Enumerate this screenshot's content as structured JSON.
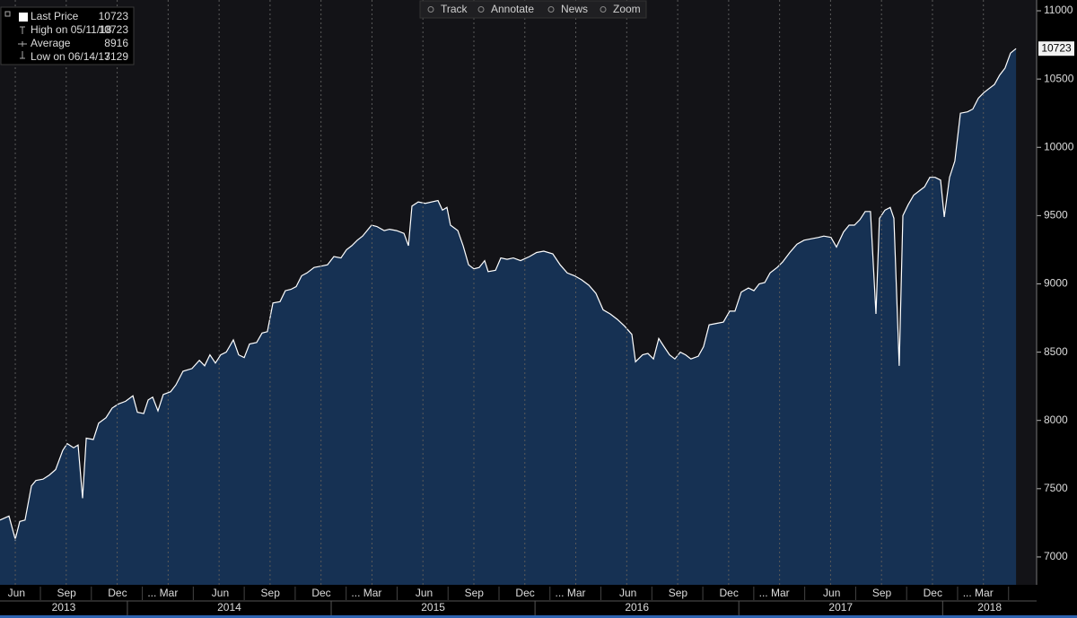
{
  "toolbar": [
    "Track",
    "Annotate",
    "News",
    "Zoom"
  ],
  "chart_data": {
    "type": "area",
    "legend": [
      {
        "label": "Last Price",
        "value": 10723
      },
      {
        "label": "High on 05/11/18",
        "value": 10723
      },
      {
        "label": "Average",
        "value": 8916
      },
      {
        "label": "Low on 06/14/13",
        "value": 7129
      }
    ],
    "x": [
      2013.375,
      2013.419,
      2013.45,
      2013.472,
      2013.498,
      2013.529,
      2013.551,
      2013.586,
      2013.617,
      2013.648,
      2013.683,
      2013.705,
      2013.736,
      2013.758,
      2013.78,
      2013.798,
      2013.833,
      2013.859,
      2013.895,
      2013.925,
      2013.956,
      2013.991,
      2014.027,
      2014.049,
      2014.08,
      2014.102,
      2014.124,
      2014.15,
      2014.176,
      2014.212,
      2014.238,
      2014.273,
      2014.317,
      2014.353,
      2014.379,
      2014.405,
      2014.432,
      2014.458,
      2014.485,
      2014.52,
      2014.546,
      2014.573,
      2014.599,
      2014.634,
      2014.661,
      2014.687,
      2014.714,
      2014.749,
      2014.775,
      2014.802,
      2014.828,
      2014.855,
      2014.881,
      2014.916,
      2014.951,
      2014.982,
      2015.013,
      2015.048,
      2015.075,
      2015.101,
      2015.128,
      2015.154,
      2015.198,
      2015.224,
      2015.26,
      2015.286,
      2015.321,
      2015.357,
      2015.379,
      2015.396,
      2015.427,
      2015.462,
      2015.524,
      2015.546,
      2015.568,
      2015.585,
      2015.621,
      2015.647,
      2015.674,
      2015.7,
      2015.726,
      2015.753,
      2015.77,
      2015.806,
      2015.832,
      2015.863,
      2015.894,
      2015.929,
      2015.973,
      2016.008,
      2016.043,
      2016.087,
      2016.123,
      2016.158,
      2016.193,
      2016.228,
      2016.264,
      2016.299,
      2016.334,
      2016.369,
      2016.404,
      2016.44,
      2016.475,
      2016.493,
      2016.528,
      2016.554,
      2016.581,
      2016.607,
      2016.633,
      2016.66,
      2016.686,
      2016.713,
      2016.739,
      2016.765,
      2016.801,
      2016.827,
      2016.854,
      2016.889,
      2016.924,
      2016.955,
      2016.981,
      2017.012,
      2017.047,
      2017.074,
      2017.1,
      2017.127,
      2017.153,
      2017.188,
      2017.215,
      2017.25,
      2017.285,
      2017.32,
      2017.356,
      2017.391,
      2017.417,
      2017.452,
      2017.479,
      2017.514,
      2017.541,
      2017.567,
      2017.594,
      2017.62,
      2017.646,
      2017.673,
      2017.69,
      2017.717,
      2017.743,
      2017.761,
      2017.787,
      2017.805,
      2017.831,
      2017.858,
      2017.884,
      2017.911,
      2017.937,
      2017.963,
      2017.99,
      2018.008,
      2018.034,
      2018.06,
      2018.087,
      2018.122,
      2018.148,
      2018.175,
      2018.201,
      2018.227,
      2018.254,
      2018.28,
      2018.306,
      2018.333,
      2018.36
    ],
    "series": [
      {
        "color": "#ffffff",
        "fill": "#173459",
        "values": [
          7270,
          7300,
          7130,
          7260,
          7270,
          7520,
          7560,
          7570,
          7600,
          7640,
          7780,
          7830,
          7800,
          7820,
          7430,
          7870,
          7860,
          7980,
          8020,
          8090,
          8120,
          8140,
          8180,
          8060,
          8050,
          8150,
          8170,
          8070,
          8190,
          8210,
          8260,
          8360,
          8380,
          8440,
          8400,
          8480,
          8420,
          8480,
          8500,
          8590,
          8480,
          8460,
          8560,
          8570,
          8640,
          8650,
          8860,
          8870,
          8950,
          8960,
          8980,
          9060,
          9080,
          9120,
          9130,
          9140,
          9200,
          9190,
          9250,
          9280,
          9320,
          9350,
          9430,
          9420,
          9390,
          9400,
          9390,
          9370,
          9280,
          9570,
          9600,
          9590,
          9610,
          9540,
          9560,
          9430,
          9390,
          9280,
          9140,
          9110,
          9120,
          9170,
          9090,
          9100,
          9190,
          9180,
          9190,
          9170,
          9200,
          9230,
          9240,
          9220,
          9140,
          9080,
          9060,
          9030,
          8990,
          8930,
          8810,
          8780,
          8740,
          8690,
          8630,
          8430,
          8480,
          8490,
          8450,
          8600,
          8540,
          8480,
          8450,
          8500,
          8480,
          8450,
          8470,
          8540,
          8700,
          8710,
          8720,
          8800,
          8800,
          8940,
          8970,
          8950,
          9000,
          9010,
          9080,
          9120,
          9160,
          9230,
          9290,
          9320,
          9330,
          9340,
          9350,
          9340,
          9270,
          9380,
          9430,
          9430,
          9470,
          9530,
          9530,
          8780,
          9480,
          9540,
          9560,
          9480,
          8400,
          9500,
          9580,
          9650,
          9680,
          9710,
          9780,
          9780,
          9760,
          9490,
          9780,
          9900,
          10250,
          10260,
          10280,
          10360,
          10400,
          10430,
          10460,
          10530,
          10580,
          10690,
          10723
        ]
      }
    ],
    "xlim": [
      2013.375,
      2018.461
    ],
    "ylim": [
      6796,
      11079
    ],
    "yticks": [
      7000,
      7500,
      8000,
      8500,
      9000,
      9500,
      10000,
      10500,
      11000
    ],
    "xticks": [
      {
        "value": 2013.45,
        "label": "Jun"
      },
      {
        "value": 2013.7,
        "label": "Sep"
      },
      {
        "value": 2013.95,
        "label": "Dec"
      },
      {
        "value": 2014.2,
        "label": "... Mar"
      },
      {
        "value": 2014.45,
        "label": "Jun"
      },
      {
        "value": 2014.7,
        "label": "Sep"
      },
      {
        "value": 2014.95,
        "label": "Dec"
      },
      {
        "value": 2015.2,
        "label": "... Mar"
      },
      {
        "value": 2015.45,
        "label": "Jun"
      },
      {
        "value": 2015.7,
        "label": "Sep"
      },
      {
        "value": 2015.95,
        "label": "Dec"
      },
      {
        "value": 2016.2,
        "label": "... Mar"
      },
      {
        "value": 2016.45,
        "label": "Jun"
      },
      {
        "value": 2016.7,
        "label": "Sep"
      },
      {
        "value": 2016.95,
        "label": "Dec"
      },
      {
        "value": 2017.2,
        "label": "... Mar"
      },
      {
        "value": 2017.45,
        "label": "Jun"
      },
      {
        "value": 2017.7,
        "label": "Sep"
      },
      {
        "value": 2017.95,
        "label": "Dec"
      },
      {
        "value": 2018.2,
        "label": "... Mar"
      }
    ],
    "year_ticks": [
      2013,
      2014,
      2015,
      2016,
      2017,
      2018
    ],
    "grid": true
  }
}
